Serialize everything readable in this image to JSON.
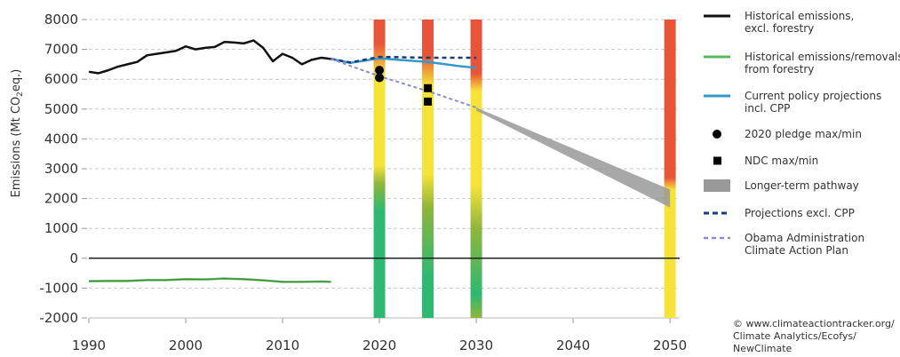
{
  "chart_data": {
    "type": "line",
    "ylabel": "Emissions (Mt CO",
    "ylabel_sub": "2",
    "ylabel_tail": "eq.)",
    "xlim": [
      1990,
      2051
    ],
    "ylim": [
      -2000,
      8000
    ],
    "x_ticks": [
      1990,
      2000,
      2010,
      2020,
      2030,
      2040,
      2050
    ],
    "y_ticks": [
      -2000,
      -1000,
      0,
      1000,
      2000,
      3000,
      4000,
      5000,
      6000,
      7000,
      8000
    ],
    "grid": "horizontal dashed",
    "legend_position": "right",
    "colors": {
      "historical": "#111111",
      "forestry": "#5cb85c",
      "current_policy": "#3399cc",
      "excl_cpp": "#1c3a7a",
      "climate_action_plan": "#8c8cc8",
      "longer_term": "#999999",
      "rating_red": "#e8543a",
      "rating_yellow": "#f5e33a",
      "rating_green": "#2eb872"
    },
    "series": [
      {
        "key": "historical",
        "name": "Historical emissions, excl. forestry",
        "x": [
          1990,
          1991,
          1992,
          1993,
          1994,
          1995,
          1996,
          1997,
          1998,
          1999,
          2000,
          2001,
          2002,
          2003,
          2004,
          2005,
          2006,
          2007,
          2008,
          2009,
          2010,
          2011,
          2012,
          2013,
          2014,
          2015
        ],
        "y": [
          6250,
          6200,
          6300,
          6420,
          6500,
          6580,
          6800,
          6850,
          6900,
          6950,
          7100,
          7000,
          7050,
          7080,
          7250,
          7230,
          7200,
          7300,
          7050,
          6600,
          6850,
          6720,
          6500,
          6650,
          6720,
          6680
        ]
      },
      {
        "key": "forestry",
        "name": "Historical emissions/removals from forestry",
        "x": [
          1990,
          1992,
          1994,
          1996,
          1998,
          2000,
          2002,
          2004,
          2006,
          2008,
          2010,
          2012,
          2014,
          2015
        ],
        "y": [
          -770,
          -760,
          -760,
          -730,
          -730,
          -700,
          -710,
          -680,
          -700,
          -740,
          -790,
          -790,
          -780,
          -790
        ]
      },
      {
        "key": "current_policy",
        "name": "Current policy projections incl. CPP",
        "x": [
          2015,
          2017,
          2020,
          2022,
          2025,
          2028,
          2030
        ],
        "y": [
          6680,
          6550,
          6700,
          6650,
          6580,
          6450,
          6380
        ]
      },
      {
        "key": "excl_cpp",
        "name": "Projections excl. CPP",
        "x": [
          2015,
          2017,
          2020,
          2025,
          2030
        ],
        "y": [
          6680,
          6560,
          6750,
          6720,
          6720
        ]
      },
      {
        "key": "climate_action_plan",
        "name": "Obama Administration Climate Action Plan",
        "x": [
          2015,
          2020,
          2025,
          2030
        ],
        "y": [
          6680,
          6100,
          5600,
          5050
        ]
      }
    ],
    "longer_term": {
      "name": "Longer-term pathway",
      "x": [
        2030,
        2050
      ],
      "upper": [
        5050,
        2300
      ],
      "lower": [
        4950,
        1700
      ]
    },
    "pledge_2020": {
      "name": "2020 pledge max/min",
      "x": 2020,
      "values": [
        6300,
        6050
      ]
    },
    "ndc": {
      "name": "NDC max/min",
      "x": 2025,
      "values": [
        5700,
        5250
      ]
    },
    "rating_bars": [
      {
        "year": 2020,
        "stops": [
          [
            "#e8543a",
            8000
          ],
          [
            "#e8543a",
            7200
          ],
          [
            "#f5e33a",
            6100
          ],
          [
            "#f5e33a",
            3100
          ],
          [
            "#8fb63c",
            2500
          ],
          [
            "#2eb872",
            1600
          ],
          [
            "#2eb872",
            -2000
          ]
        ]
      },
      {
        "year": 2025,
        "stops": [
          [
            "#e8543a",
            8000
          ],
          [
            "#e8543a",
            6800
          ],
          [
            "#f5e33a",
            5800
          ],
          [
            "#f5e33a",
            2800
          ],
          [
            "#8fb63c",
            1700
          ],
          [
            "#2eb872",
            -600
          ],
          [
            "#2eb872",
            -2000
          ]
        ]
      },
      {
        "year": 2030,
        "stops": [
          [
            "#e8543a",
            8000
          ],
          [
            "#e8543a",
            6200
          ],
          [
            "#f5e33a",
            5600
          ],
          [
            "#f5e33a",
            2400
          ],
          [
            "#8fb63c",
            1000
          ],
          [
            "#2eb872",
            -1200
          ],
          [
            "#8fb63c",
            -2000
          ]
        ]
      },
      {
        "year": 2050,
        "stops": [
          [
            "#e8543a",
            8000
          ],
          [
            "#e8543a",
            2700
          ],
          [
            "#f5e33a",
            2300
          ],
          [
            "#f5e33a",
            -1600
          ],
          [
            "#f5e33a",
            -2000
          ]
        ]
      }
    ],
    "legend": [
      {
        "key": "historical",
        "kind": "line",
        "lines": [
          "Historical emissions,",
          "excl. forestry"
        ]
      },
      {
        "key": "forestry",
        "kind": "line",
        "lines": [
          "Historical emissions/removals",
          "from forestry"
        ]
      },
      {
        "key": "current_policy",
        "kind": "line",
        "lines": [
          "Current policy projections",
          "incl. CPP"
        ]
      },
      {
        "key": "pledge",
        "kind": "circle",
        "lines": [
          "2020 pledge max/min"
        ]
      },
      {
        "key": "ndc",
        "kind": "square",
        "lines": [
          "NDC max/min"
        ]
      },
      {
        "key": "longer_term",
        "kind": "band",
        "lines": [
          "Longer-term pathway"
        ]
      },
      {
        "key": "excl_cpp",
        "kind": "dash",
        "lines": [
          "Projections excl. CPP"
        ]
      },
      {
        "key": "climate_action_plan",
        "kind": "dotline",
        "lines": [
          "Obama Administration",
          "Climate Action Plan"
        ]
      }
    ],
    "credit": [
      "© www.climateactiontracker.org/",
      "Climate Analytics/Ecofys/",
      "NewClimate"
    ]
  }
}
